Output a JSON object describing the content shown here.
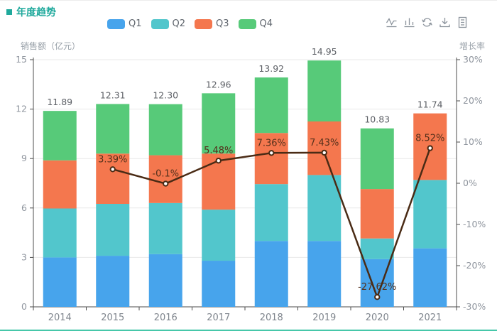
{
  "title": {
    "text": "年度趋势"
  },
  "toolbar": {
    "icons": [
      "switch-to-line-chart",
      "switch-to-bar-chart",
      "restore",
      "save-as-image",
      "data-view"
    ]
  },
  "chart_data": {
    "type": "bar",
    "subtype": "stacked-bar-with-line",
    "title": "年度趋势",
    "categories": [
      "2014",
      "2015",
      "2016",
      "2017",
      "2018",
      "2019",
      "2020",
      "2021"
    ],
    "series": [
      {
        "name": "Q1",
        "type": "bar",
        "stack": true,
        "color": "#47a4ec",
        "values": [
          3.0,
          3.1,
          3.2,
          2.8,
          4.0,
          4.0,
          2.9,
          3.55
        ]
      },
      {
        "name": "Q2",
        "type": "bar",
        "stack": true,
        "color": "#52c6cc",
        "values": [
          2.97,
          3.15,
          3.1,
          3.1,
          3.45,
          4.0,
          1.25,
          4.15
        ]
      },
      {
        "name": "Q3",
        "type": "bar",
        "stack": true,
        "color": "#f4774e",
        "values": [
          2.92,
          3.05,
          2.9,
          3.4,
          3.1,
          3.25,
          3.0,
          4.04
        ]
      },
      {
        "name": "Q4",
        "type": "bar",
        "stack": true,
        "color": "#57ca79",
        "values": [
          3.0,
          3.01,
          3.1,
          3.66,
          3.37,
          3.7,
          3.68,
          0
        ]
      },
      {
        "name": "增长率",
        "type": "line",
        "color": "#4a2b15",
        "axis": "right",
        "values": [
          null,
          3.39,
          -0.1,
          5.48,
          7.36,
          7.43,
          -27.62,
          8.52
        ],
        "labels": [
          null,
          "3.39%",
          "-0.1%",
          "5.48%",
          "7.36%",
          "7.43%",
          "-27.62%",
          "8.52%"
        ]
      }
    ],
    "totals": [
      "11.89",
      "12.31",
      "12.30",
      "12.96",
      "13.92",
      "14.95",
      "10.83",
      "11.74"
    ],
    "left_axis": {
      "name": "销售额（亿元）",
      "min": 0,
      "max": 15,
      "tick_values": [
        0,
        3,
        6,
        9,
        12,
        15
      ],
      "ticks": [
        "0",
        "3",
        "6",
        "9",
        "12",
        "15"
      ]
    },
    "right_axis": {
      "name": "增长率",
      "min": -30,
      "max": 30,
      "tick_values": [
        -30,
        -20,
        -10,
        0,
        10,
        20,
        30
      ],
      "ticks": [
        "-30%",
        "-20%",
        "-10%",
        "0%",
        "10%",
        "20%",
        "30%"
      ]
    },
    "grid": "horizontal-only",
    "legend_position": "top",
    "colors": {
      "axis_line": "#4c4c4c",
      "grid_line": "#e9e9e9",
      "tick_label": "#8f959e",
      "x_label": "#7f858d",
      "total_label": "#5d6066",
      "line": "#4a2b15",
      "line_label": "#54301b",
      "title": "#1fa99c",
      "accent_bottom": "#46c7a9"
    }
  }
}
